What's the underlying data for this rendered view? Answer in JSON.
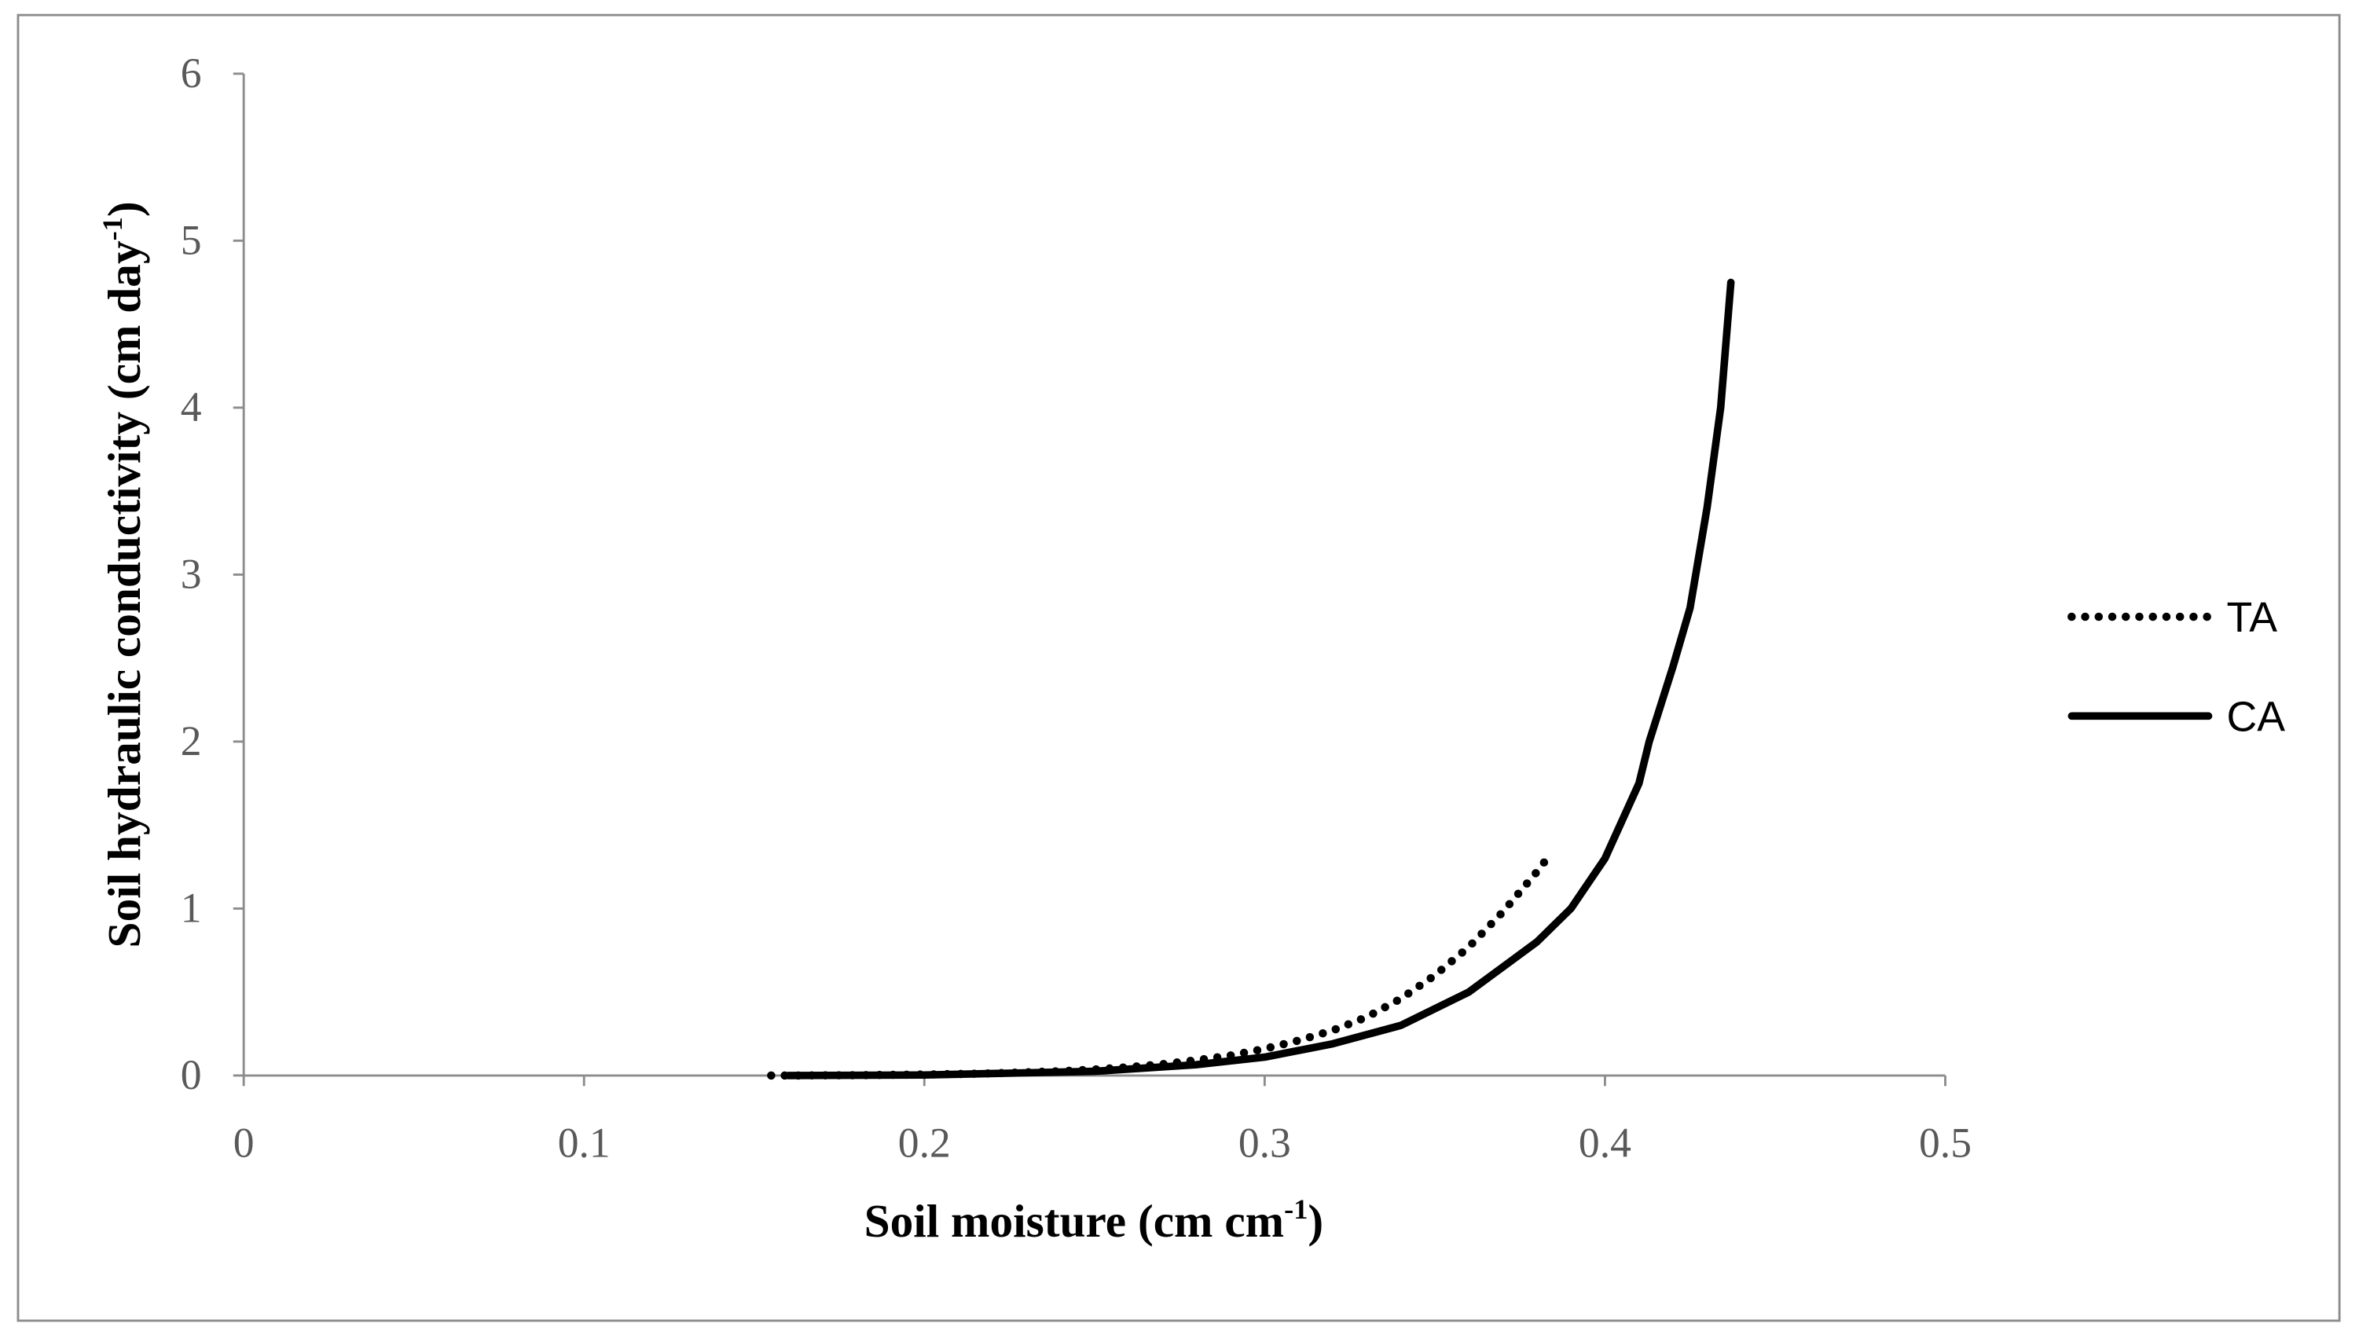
{
  "chart_data": {
    "type": "line",
    "x_label": [
      "Soil moisture (cm cm",
      "-1",
      ")"
    ],
    "y_label": [
      "Soil hydraulic conductivity (cm day",
      "-1",
      ")"
    ],
    "xlim": [
      0,
      0.5
    ],
    "xticks": [
      0,
      0.1,
      0.2,
      0.3,
      0.4,
      0.5
    ],
    "ylim": [
      0,
      6
    ],
    "yticks": [
      0,
      1,
      2,
      3,
      4,
      5,
      6
    ],
    "legend": "right",
    "series": [
      {
        "name": "TA",
        "color": "#000000",
        "style": "dotted",
        "x": [
          0.155,
          0.16,
          0.17,
          0.18,
          0.19,
          0.2,
          0.21,
          0.22,
          0.23,
          0.24,
          0.25,
          0.26,
          0.27,
          0.28,
          0.29,
          0.3,
          0.31,
          0.32,
          0.33,
          0.34,
          0.35,
          0.36,
          0.37,
          0.38,
          0.383
        ],
        "values": [
          0,
          0,
          0.001,
          0.002,
          0.004,
          0.006,
          0.009,
          0.013,
          0.019,
          0.026,
          0.036,
          0.05,
          0.068,
          0.092,
          0.12,
          0.16,
          0.21,
          0.27,
          0.35,
          0.46,
          0.6,
          0.77,
          0.98,
          1.22,
          1.3
        ]
      },
      {
        "name": "CA",
        "color": "#000000",
        "style": "solid",
        "x": [
          0.16,
          0.2,
          0.25,
          0.28,
          0.3,
          0.32,
          0.34,
          0.36,
          0.38,
          0.39,
          0.4,
          0.41,
          0.413,
          0.42,
          0.425,
          0.43,
          0.434,
          0.437
        ],
        "values": [
          0,
          0.003,
          0.025,
          0.065,
          0.11,
          0.19,
          0.3,
          0.5,
          0.8,
          1.0,
          1.3,
          1.75,
          2.0,
          2.45,
          2.8,
          3.4,
          4.0,
          4.75
        ]
      }
    ]
  }
}
